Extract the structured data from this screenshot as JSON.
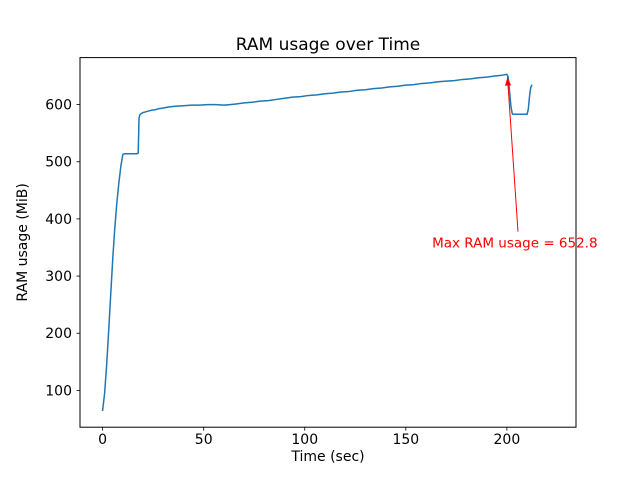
{
  "figure": {
    "background": "#ffffff",
    "plot_border_color": "#000000"
  },
  "chart_data": {
    "type": "line",
    "title": "RAM usage over Time",
    "xlabel": "Time (sec)",
    "ylabel": "RAM usage (MiB)",
    "xlim": [
      -11.2,
      234.2
    ],
    "ylim": [
      35.6,
      682.2
    ],
    "xticks": [
      0,
      50,
      100,
      150,
      200
    ],
    "yticks": [
      100,
      200,
      300,
      400,
      500,
      600
    ],
    "grid": false,
    "legend": "none",
    "series": [
      {
        "name": "ram-usage",
        "color": "#1f77b4",
        "points": [
          [
            0,
            65
          ],
          [
            1,
            96
          ],
          [
            2,
            145
          ],
          [
            3,
            205
          ],
          [
            4,
            268
          ],
          [
            5,
            330
          ],
          [
            6,
            383
          ],
          [
            7,
            427
          ],
          [
            8,
            462
          ],
          [
            9,
            492
          ],
          [
            10,
            513
          ],
          [
            11,
            514
          ],
          [
            13,
            514
          ],
          [
            15,
            514
          ],
          [
            17,
            514
          ],
          [
            17.6,
            515
          ],
          [
            18,
            576
          ],
          [
            18.4,
            582
          ],
          [
            19,
            584
          ],
          [
            20,
            586
          ],
          [
            22,
            588
          ],
          [
            24,
            590
          ],
          [
            26,
            591
          ],
          [
            28,
            593
          ],
          [
            30,
            594
          ],
          [
            33,
            596
          ],
          [
            36,
            597
          ],
          [
            40,
            598
          ],
          [
            44,
            599
          ],
          [
            48,
            599
          ],
          [
            52,
            600
          ],
          [
            56,
            600
          ],
          [
            60,
            599
          ],
          [
            63,
            600
          ],
          [
            66,
            601
          ],
          [
            70,
            603
          ],
          [
            74,
            604
          ],
          [
            78,
            606
          ],
          [
            82,
            607
          ],
          [
            86,
            609
          ],
          [
            90,
            611
          ],
          [
            94,
            613
          ],
          [
            98,
            614
          ],
          [
            102,
            616
          ],
          [
            106,
            617
          ],
          [
            110,
            619
          ],
          [
            114,
            620
          ],
          [
            118,
            622
          ],
          [
            122,
            623
          ],
          [
            126,
            625
          ],
          [
            130,
            626
          ],
          [
            134,
            628
          ],
          [
            138,
            629
          ],
          [
            142,
            631
          ],
          [
            146,
            632
          ],
          [
            150,
            634
          ],
          [
            154,
            635
          ],
          [
            158,
            637
          ],
          [
            162,
            638
          ],
          [
            166,
            640
          ],
          [
            170,
            641
          ],
          [
            174,
            642
          ],
          [
            178,
            644
          ],
          [
            182,
            645
          ],
          [
            186,
            647
          ],
          [
            190,
            648
          ],
          [
            194,
            650
          ],
          [
            197,
            651
          ],
          [
            199,
            652.3
          ],
          [
            200,
            652.8
          ],
          [
            200.6,
            649
          ],
          [
            201.2,
            628
          ],
          [
            202,
            597
          ],
          [
            202.6,
            585
          ],
          [
            203,
            583
          ],
          [
            205,
            583
          ],
          [
            207,
            583
          ],
          [
            209,
            583
          ],
          [
            210,
            583
          ],
          [
            210.6,
            592
          ],
          [
            211.2,
            614
          ],
          [
            211.8,
            630
          ],
          [
            212.3,
            634
          ]
        ]
      }
    ],
    "annotation": {
      "text": "Max RAM usage = 652.8",
      "max_value": 652.8,
      "color": "#ff0000",
      "point": [
        200.3,
        648
      ],
      "arrow_tail": [
        205.5,
        378
      ],
      "text_anchor": [
        163,
        350
      ]
    }
  }
}
